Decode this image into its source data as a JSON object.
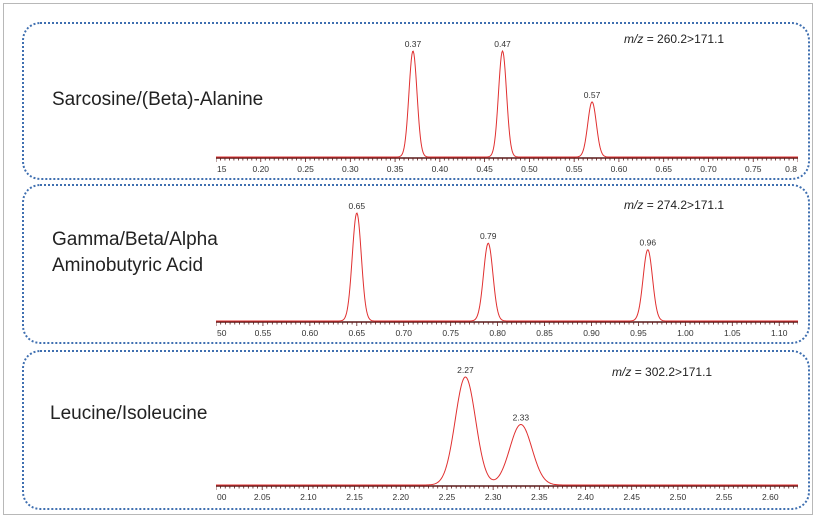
{
  "chart_data": [
    {
      "type": "line",
      "compound": "Sarcosine/(Beta)-Alanine",
      "mz_prefix": "m/z",
      "transition": "= 260.2>171.1",
      "xlim": [
        0.15,
        0.8
      ],
      "tick_labels": [
        "0.20",
        "0.25",
        "0.30",
        "0.35",
        "0.40",
        "0.45",
        "0.50",
        "0.55",
        "0.60",
        "0.65",
        "0.70",
        "0.75",
        "0.8"
      ],
      "left_partial_label": "15",
      "peaks": [
        {
          "rt": 0.37,
          "label": "0.37",
          "height": 1.0,
          "width": 0.0045
        },
        {
          "rt": 0.47,
          "label": "0.47",
          "height": 1.0,
          "width": 0.0045
        },
        {
          "rt": 0.57,
          "label": "0.57",
          "height": 0.52,
          "width": 0.0048
        }
      ]
    },
    {
      "type": "line",
      "compound": "Gamma/Beta/Alpha\nAminobutyric Acid",
      "compound_line1": "Gamma/Beta/Alpha",
      "compound_line2": "Aminobutyric Acid",
      "mz_prefix": "m/z",
      "transition": "= 274.2>171.1",
      "xlim": [
        0.5,
        1.12
      ],
      "tick_labels": [
        "0.55",
        "0.60",
        "0.65",
        "0.70",
        "0.75",
        "0.80",
        "0.85",
        "0.90",
        "0.95",
        "1.00",
        "1.05",
        "1.10"
      ],
      "left_partial_label": "50",
      "peaks": [
        {
          "rt": 0.65,
          "label": "0.65",
          "height": 1.0,
          "width": 0.0048
        },
        {
          "rt": 0.79,
          "label": "0.79",
          "height": 0.72,
          "width": 0.005
        },
        {
          "rt": 0.96,
          "label": "0.96",
          "height": 0.66,
          "width": 0.005
        }
      ]
    },
    {
      "type": "line",
      "compound": "Leucine/Isoleucine",
      "mz_prefix": "m/z",
      "transition": "= 302.2>171.1",
      "xlim": [
        2.0,
        2.63
      ],
      "tick_labels": [
        "2.05",
        "2.10",
        "2.15",
        "2.20",
        "2.25",
        "2.30",
        "2.35",
        "2.40",
        "2.45",
        "2.50",
        "2.55",
        "2.60"
      ],
      "left_partial_label": "00",
      "peaks": [
        {
          "rt": 2.27,
          "label": "2.27",
          "height": 1.0,
          "width": 0.011
        },
        {
          "rt": 2.33,
          "label": "2.33",
          "height": 0.56,
          "width": 0.012
        }
      ]
    }
  ]
}
